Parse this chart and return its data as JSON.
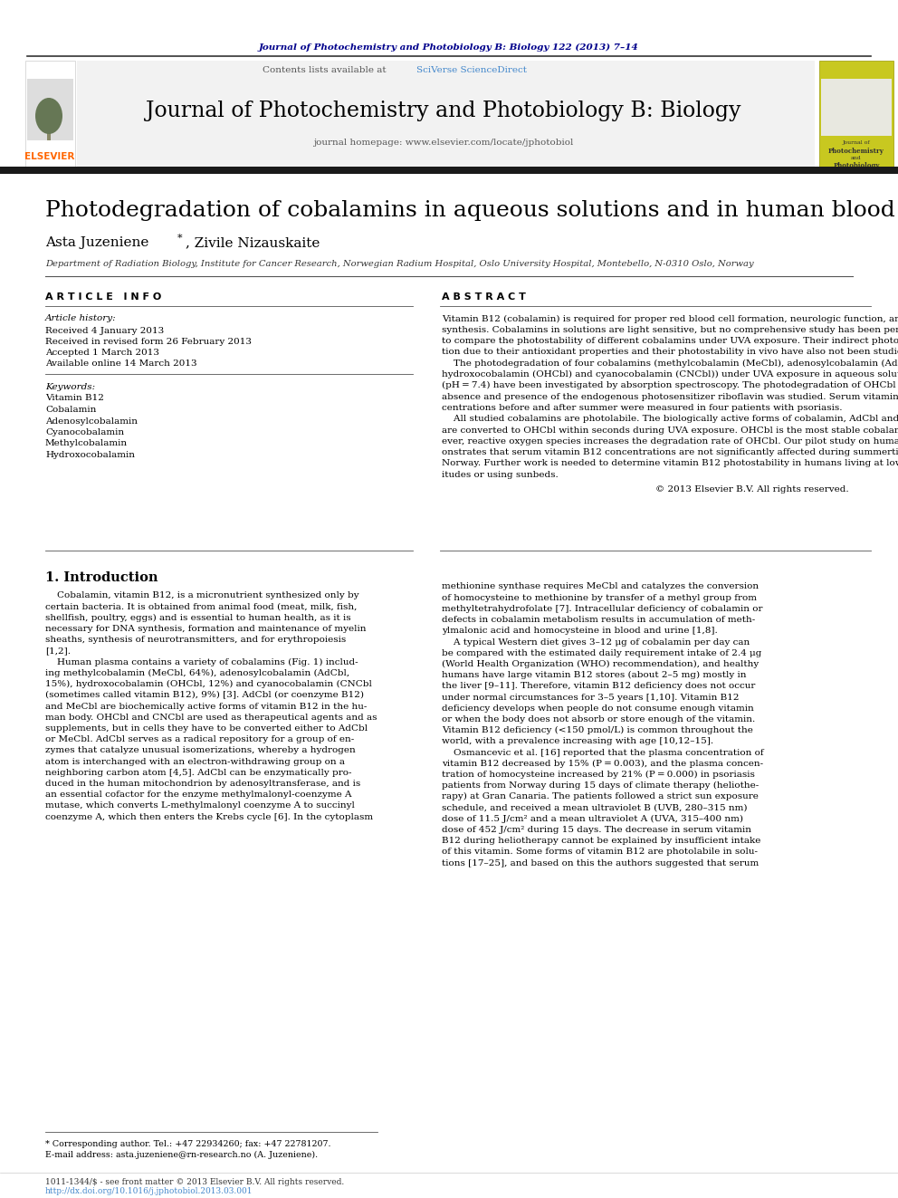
{
  "journal_ref": "Journal of Photochemistry and Photobiology B: Biology 122 (2013) 7–14",
  "contents_line": "Contents lists available at SciVerse ScienceDirect",
  "journal_name": "Journal of Photochemistry and Photobiology B: Biology",
  "journal_homepage": "journal homepage: www.elsevier.com/locate/jphotobiol",
  "paper_title": "Photodegradation of cobalamins in aqueous solutions and in human blood",
  "affiliation": "Department of Radiation Biology, Institute for Cancer Research, Norwegian Radium Hospital, Oslo University Hospital, Montebello, N-0310 Oslo, Norway",
  "article_info_header": "A R T I C L E   I N F O",
  "abstract_header": "A B S T R A C T",
  "article_history_label": "Article history:",
  "received": "Received 4 January 2013",
  "received_revised": "Received in revised form 26 February 2013",
  "accepted": "Accepted 1 March 2013",
  "available": "Available online 14 March 2013",
  "keywords_label": "Keywords:",
  "keywords": [
    "Vitamin B12",
    "Cobalamin",
    "Adenosylcobalamin",
    "Cyanocobalamin",
    "Methylcobalamin",
    "Hydroxocobalamin"
  ],
  "copyright": "© 2013 Elsevier B.V. All rights reserved.",
  "section1_title": "1. Introduction",
  "footnote1": "* Corresponding author. Tel.: +47 22934260; fax: +47 22781207.",
  "footnote2": "E-mail address: asta.juzeniene@rn-research.no (A. Juzeniene).",
  "footer1": "1011-1344/$ - see front matter © 2013 Elsevier B.V. All rights reserved.",
  "footer2": "http://dx.doi.org/10.1016/j.jphotobiol.2013.03.001",
  "bg_color": "#ffffff",
  "journal_ref_color": "#00008B",
  "sciverse_color": "#4488cc",
  "elsevier_orange": "#FF6600",
  "link_color": "#4488cc"
}
